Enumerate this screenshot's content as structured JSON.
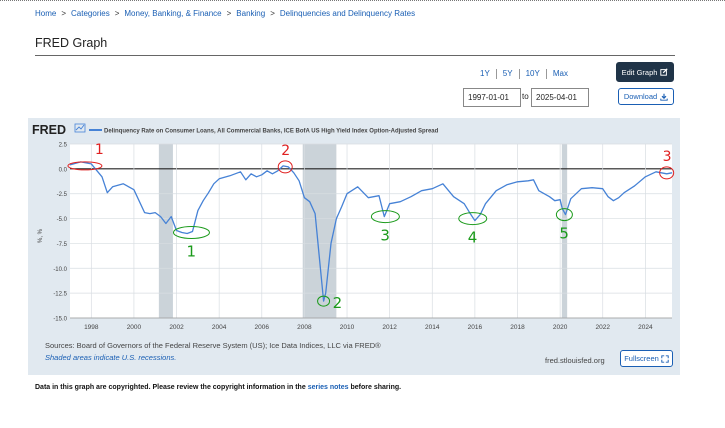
{
  "breadcrumb": {
    "items": [
      "Home",
      "Categories",
      "Money, Banking, & Finance",
      "Banking",
      "Delinquencies and Delinquency Rates"
    ],
    "separator": ">"
  },
  "page_title": "FRED Graph",
  "controls": {
    "ranges": [
      "1Y",
      "5Y",
      "10Y",
      "Max"
    ],
    "start_date": "1997-01-01",
    "to_label": "to",
    "end_date": "2025-04-01",
    "edit_label": "Edit Graph",
    "download_label": "Download"
  },
  "graph": {
    "logo": "FRED",
    "legend": {
      "series1": "Delinquency Rate on Consumer Loans, All Commercial Banks",
      "joiner": ", ",
      "series2": "ICE BofA US High Yield Index Option-Adjusted Spread"
    },
    "ylabel": "%, %",
    "recession_color": "#cbd3d9",
    "line_color": "#4682d6",
    "annotation_red": "#e02020",
    "annotation_green": "#1a9a1a",
    "red_marks": [
      "1",
      "2",
      "3"
    ],
    "green_marks": [
      "1",
      "2",
      "3",
      "4",
      "5"
    ]
  },
  "footer": {
    "source": "Sources: Board of Governors of the Federal Reserve System (US); Ice Data Indices, LLC via FRED®",
    "shaded_note": "Shaded areas indicate U.S. recessions.",
    "site": "fred.stlouisfed.org",
    "fullscreen_label": "Fullscreen"
  },
  "copyright": {
    "prefix": "Data in this graph are copyrighted. Please review the copyright information in the",
    "link": "series notes",
    "suffix": "before sharing."
  },
  "chart_data": {
    "type": "line",
    "title": "",
    "ylabel": "%, %",
    "xlabel": "",
    "x_ticks": [
      "1998",
      "2000",
      "2002",
      "2004",
      "2006",
      "2008",
      "2010",
      "2012",
      "2014",
      "2016",
      "2018",
      "2020",
      "2022",
      "2024"
    ],
    "y_ticks": [
      "2.5",
      "0.0",
      "-2.5",
      "-5.0",
      "-7.5",
      "-10.0",
      "-12.5",
      "-15.0"
    ],
    "ylim": [
      -15.0,
      2.5
    ],
    "xlim": [
      1997.0,
      2025.25
    ],
    "grid": true,
    "recessions": [
      [
        2001.17,
        2001.83
      ],
      [
        2007.92,
        2009.5
      ],
      [
        2020.08,
        2020.33
      ]
    ],
    "series": [
      {
        "name": "Delinquency Rate on Consumer Loans, All Commercial Banks - ICE BofA US High Yield Index Option-Adjusted Spread",
        "x": [
          1997.0,
          1997.5,
          1998.0,
          1998.5,
          1998.75,
          1999.0,
          1999.5,
          2000.0,
          2000.5,
          2000.75,
          2001.0,
          2001.25,
          2001.5,
          2001.75,
          2002.0,
          2002.25,
          2002.5,
          2002.75,
          2003.0,
          2003.25,
          2003.5,
          2003.75,
          2004.0,
          2004.5,
          2005.0,
          2005.25,
          2005.5,
          2005.75,
          2006.0,
          2006.25,
          2006.5,
          2006.75,
          2007.0,
          2007.25,
          2007.5,
          2007.75,
          2008.0,
          2008.25,
          2008.5,
          2008.75,
          2008.9,
          2009.0,
          2009.25,
          2009.5,
          2009.75,
          2010.0,
          2010.5,
          2011.0,
          2011.5,
          2011.75,
          2012.0,
          2012.5,
          2013.0,
          2013.5,
          2014.0,
          2014.5,
          2015.0,
          2015.5,
          2015.75,
          2016.0,
          2016.25,
          2016.5,
          2017.0,
          2017.5,
          2018.0,
          2018.5,
          2018.75,
          2019.0,
          2019.5,
          2019.75,
          2020.0,
          2020.1,
          2020.25,
          2020.5,
          2021.0,
          2021.5,
          2022.0,
          2022.25,
          2022.5,
          2022.75,
          2023.0,
          2023.5,
          2024.0,
          2024.5,
          2025.0,
          2025.25
        ],
        "y": [
          0.4,
          0.7,
          0.5,
          -0.8,
          -2.4,
          -1.8,
          -1.5,
          -2.1,
          -4.4,
          -4.5,
          -4.4,
          -4.8,
          -5.5,
          -4.8,
          -6.2,
          -6.4,
          -6.5,
          -6.3,
          -4.2,
          -3.2,
          -2.4,
          -1.5,
          -1.0,
          -0.7,
          -0.3,
          -1.1,
          -0.5,
          -0.8,
          -0.6,
          -0.2,
          -0.5,
          -0.2,
          0.3,
          0.2,
          -0.4,
          -1.2,
          -2.9,
          -3.3,
          -4.5,
          -10.0,
          -13.3,
          -12.5,
          -7.5,
          -5.0,
          -3.8,
          -2.5,
          -1.8,
          -2.9,
          -2.7,
          -4.8,
          -3.5,
          -3.3,
          -2.8,
          -2.2,
          -2.0,
          -1.5,
          -2.8,
          -3.5,
          -4.4,
          -5.2,
          -4.6,
          -3.5,
          -2.2,
          -1.6,
          -1.3,
          -1.2,
          -1.1,
          -2.2,
          -2.8,
          -3.2,
          -3.1,
          -4.0,
          -4.6,
          -3.0,
          -2.0,
          -1.9,
          -2.0,
          -2.8,
          -3.2,
          -2.9,
          -2.4,
          -1.7,
          -0.8,
          -0.3,
          -0.5,
          -0.4
        ]
      }
    ]
  }
}
